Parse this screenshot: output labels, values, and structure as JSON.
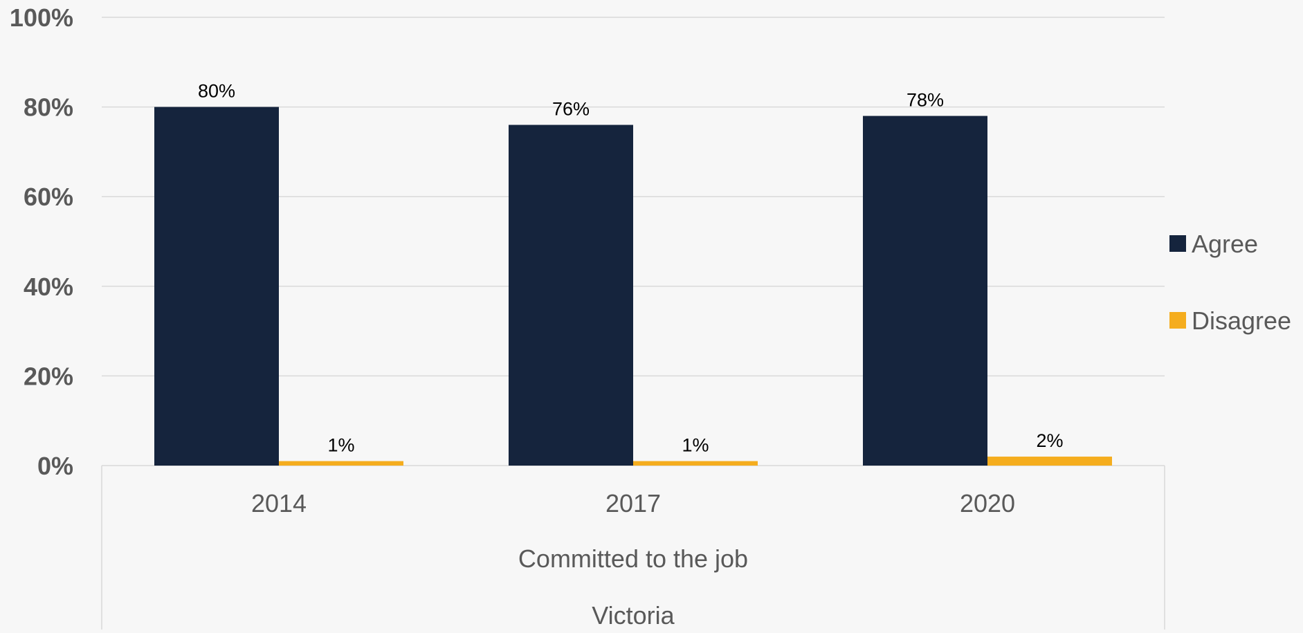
{
  "chart_data": {
    "type": "bar",
    "categories": [
      "2014",
      "2017",
      "2020"
    ],
    "group_labels": [
      "Committed to the job",
      "Victoria"
    ],
    "series": [
      {
        "name": "Agree",
        "values": [
          80,
          76,
          78
        ],
        "labels": [
          "80%",
          "76%",
          "78%"
        ],
        "color": "#15243d"
      },
      {
        "name": "Disagree",
        "values": [
          1,
          1,
          2
        ],
        "labels": [
          "1%",
          "1%",
          "2%"
        ],
        "color": "#f5ad1e"
      }
    ],
    "ylim": [
      0,
      100
    ],
    "yticks": [
      {
        "value": 0,
        "label": "0%"
      },
      {
        "value": 20,
        "label": "20%"
      },
      {
        "value": 40,
        "label": "40%"
      },
      {
        "value": 60,
        "label": "60%"
      },
      {
        "value": 80,
        "label": "80%"
      },
      {
        "value": 100,
        "label": "100%"
      }
    ],
    "grid": true,
    "legend_position": "right",
    "colors": {
      "background": "#f7f7f7",
      "gridline": "#d9d9d9",
      "axis_text": "#595959",
      "label_text": "#000000"
    }
  }
}
